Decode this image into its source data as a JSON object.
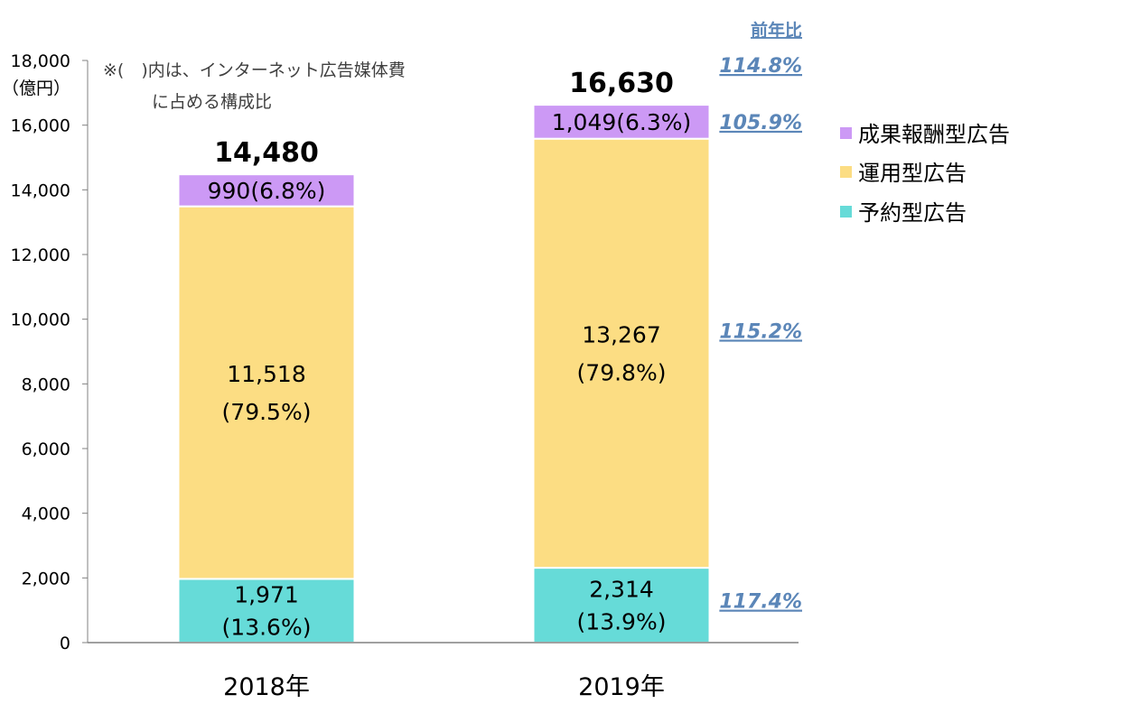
{
  "chart_data": {
    "type": "bar",
    "stacked": true,
    "categories": [
      "2018年",
      "2019年"
    ],
    "series": [
      {
        "name": "予約型広告",
        "values": [
          1971,
          2314
        ],
        "labels": [
          [
            "1,971",
            "(13.6%)"
          ],
          [
            "2,314",
            "(13.9%)"
          ]
        ],
        "color": "#66dbd8"
      },
      {
        "name": "運用型広告",
        "values": [
          11518,
          13267
        ],
        "labels": [
          [
            "11,518",
            "(79.5%)"
          ],
          [
            "13,267",
            "(79.8%)"
          ]
        ],
        "color": "#fcdd83"
      },
      {
        "name": "成果報酬型広告",
        "values": [
          990,
          1049
        ],
        "labels": [
          [
            "990(6.8%)"
          ],
          [
            "1,049(6.3%)"
          ]
        ],
        "color": "#cc99f5"
      }
    ],
    "totals": [
      "14,480",
      "16,630"
    ],
    "yaxis": {
      "ticks": [
        0,
        2000,
        4000,
        6000,
        8000,
        10000,
        12000,
        14000,
        16000,
        18000
      ],
      "tick_labels": [
        "0",
        "2,000",
        "4,000",
        "6,000",
        "8,000",
        "10,000",
        "12,000",
        "14,000",
        "16,000",
        "18,000"
      ],
      "unit": "（億円）",
      "ylim": [
        0,
        18000
      ]
    },
    "note_lines": [
      "※(　)内は、インターネット広告媒体費",
      "に占める構成比"
    ],
    "yoy": {
      "header": "前年比",
      "total": "114.8%",
      "by_series": {
        "成果報酬型広告": "105.9%",
        "運用型広告": "115.2%",
        "予約型広告": "117.4%"
      }
    },
    "legend": {
      "placement": "right",
      "order": [
        "成果報酬型広告",
        "運用型広告",
        "予約型広告"
      ]
    }
  }
}
